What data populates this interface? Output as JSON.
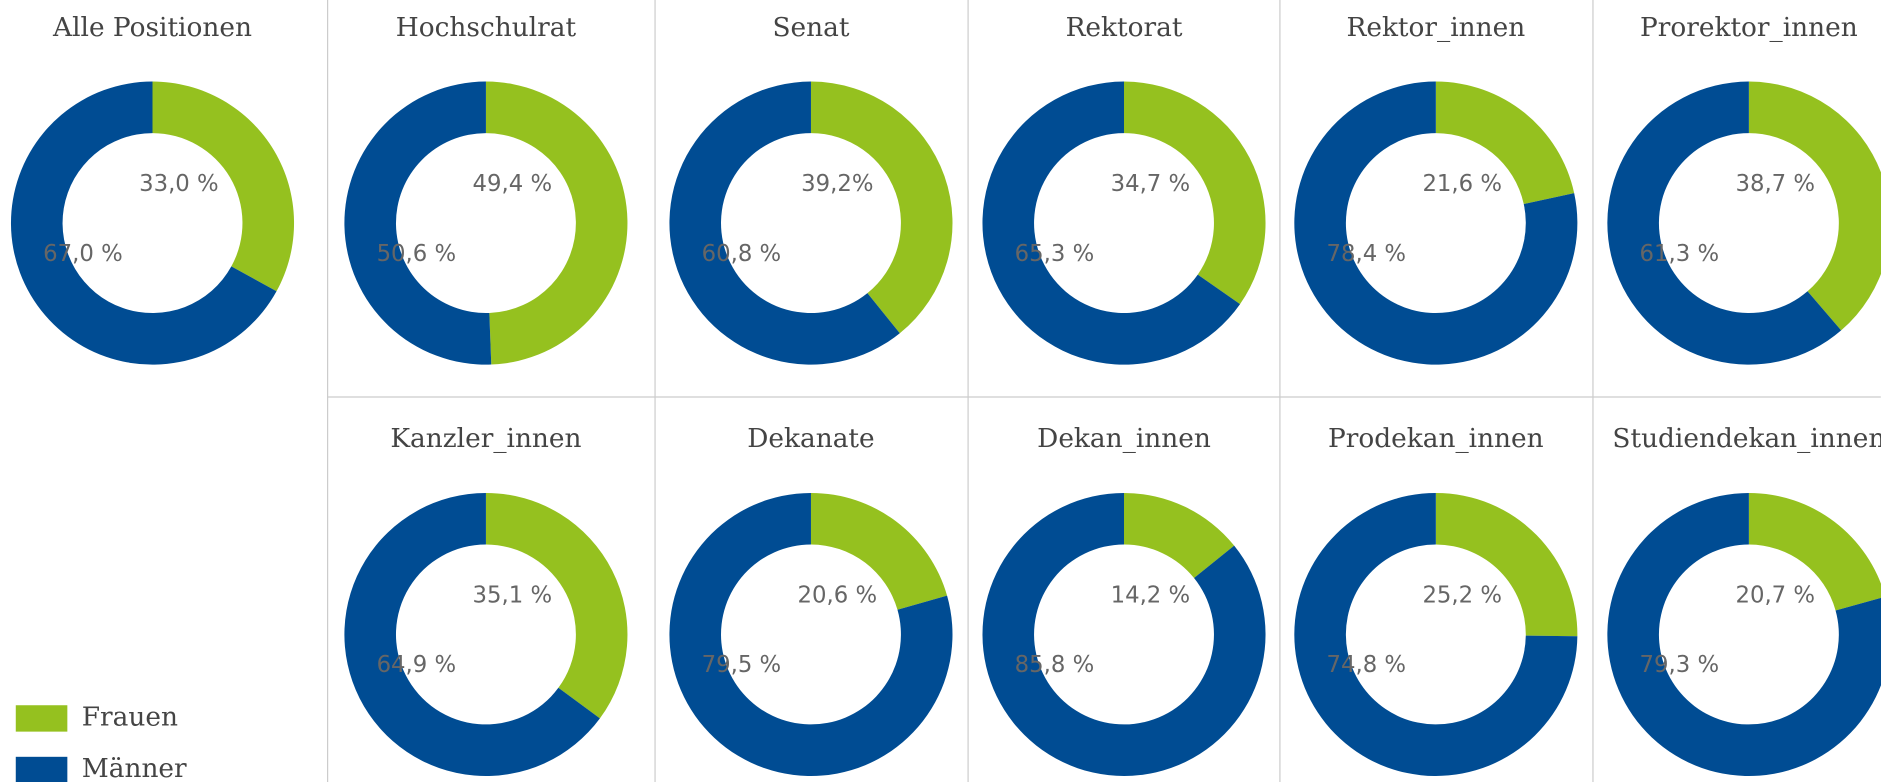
{
  "chart_data": [
    {
      "type": "pie",
      "title": "Alle Positionen",
      "categories": [
        "Frauen",
        "Männer"
      ],
      "values": [
        33.0,
        67.0
      ],
      "value_labels": [
        "33,0 %",
        "67,0 %"
      ],
      "colors": [
        "#95c11f",
        "#004c93"
      ]
    },
    {
      "type": "pie",
      "title": "Hochschulrat",
      "categories": [
        "Frauen",
        "Männer"
      ],
      "values": [
        49.4,
        50.6
      ],
      "value_labels": [
        "49,4 %",
        "50,6 %"
      ],
      "colors": [
        "#95c11f",
        "#004c93"
      ]
    },
    {
      "type": "pie",
      "title": "Senat",
      "categories": [
        "Frauen",
        "Männer"
      ],
      "values": [
        39.2,
        60.8
      ],
      "value_labels": [
        "39,2%",
        "60,8 %"
      ],
      "colors": [
        "#95c11f",
        "#004c93"
      ]
    },
    {
      "type": "pie",
      "title": "Rektorat",
      "categories": [
        "Frauen",
        "Männer"
      ],
      "values": [
        34.7,
        65.3
      ],
      "value_labels": [
        "34,7 %",
        "65,3 %"
      ],
      "colors": [
        "#95c11f",
        "#004c93"
      ]
    },
    {
      "type": "pie",
      "title": "Rektor_innen",
      "categories": [
        "Frauen",
        "Männer"
      ],
      "values": [
        21.6,
        78.4
      ],
      "value_labels": [
        "21,6 %",
        "78,4 %"
      ],
      "colors": [
        "#95c11f",
        "#004c93"
      ]
    },
    {
      "type": "pie",
      "title": "Prorektor_innen",
      "categories": [
        "Frauen",
        "Männer"
      ],
      "values": [
        38.7,
        61.3
      ],
      "value_labels": [
        "38,7 %",
        "61,3 %"
      ],
      "colors": [
        "#95c11f",
        "#004c93"
      ]
    },
    {
      "type": "pie",
      "title": "Kanzler_innen",
      "categories": [
        "Frauen",
        "Männer"
      ],
      "values": [
        35.1,
        64.9
      ],
      "value_labels": [
        "35,1 %",
        "64,9 %"
      ],
      "colors": [
        "#95c11f",
        "#004c93"
      ]
    },
    {
      "type": "pie",
      "title": "Dekanate",
      "categories": [
        "Frauen",
        "Männer"
      ],
      "values": [
        20.6,
        79.5
      ],
      "value_labels": [
        "20,6 %",
        "79,5 %"
      ],
      "colors": [
        "#95c11f",
        "#004c93"
      ]
    },
    {
      "type": "pie",
      "title": "Dekan_innen",
      "categories": [
        "Frauen",
        "Männer"
      ],
      "values": [
        14.2,
        85.8
      ],
      "value_labels": [
        "14,2 %",
        "85,8 %"
      ],
      "colors": [
        "#95c11f",
        "#004c93"
      ]
    },
    {
      "type": "pie",
      "title": "Prodekan_innen",
      "categories": [
        "Frauen",
        "Männer"
      ],
      "values": [
        25.2,
        74.8
      ],
      "value_labels": [
        "25,2 %",
        "74,8 %"
      ],
      "colors": [
        "#95c11f",
        "#004c93"
      ]
    },
    {
      "type": "pie",
      "title": "Studiendekan_innen",
      "categories": [
        "Frauen",
        "Männer"
      ],
      "values": [
        20.7,
        79.3
      ],
      "value_labels": [
        "20,7 %",
        "79,3 %"
      ],
      "colors": [
        "#95c11f",
        "#004c93"
      ]
    }
  ]
}
